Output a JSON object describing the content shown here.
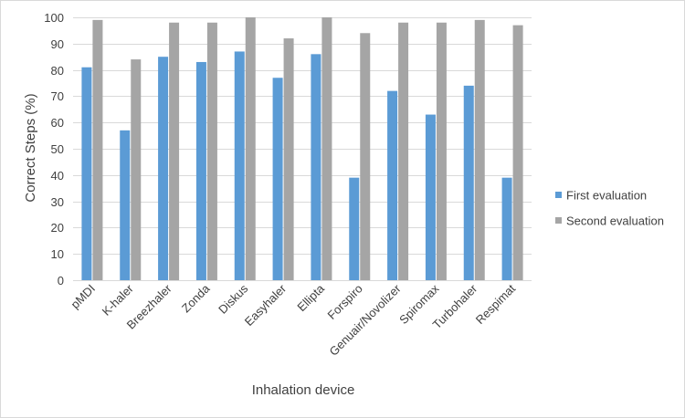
{
  "chart_data": {
    "type": "bar",
    "title": "",
    "xlabel": "Inhalation device",
    "ylabel": "Correct Steps (%)",
    "ylim": [
      0,
      100
    ],
    "ytick_step": 10,
    "grid": true,
    "legend_position": "right",
    "categories": [
      "pMDI",
      "K-haler",
      "Breezhaler",
      "Zonda",
      "Diskus",
      "Easyhaler",
      "Ellipta",
      "Forspiro",
      "Genuair/Novolizer",
      "Spiromax",
      "Turbohaler",
      "Respimat"
    ],
    "series": [
      {
        "name": "First evaluation",
        "color": "#5B9BD5",
        "values": [
          81,
          57,
          85,
          83,
          87,
          77,
          86,
          39,
          72,
          63,
          74,
          39
        ]
      },
      {
        "name": "Second evaluation",
        "color": "#A5A5A5",
        "values": [
          99,
          84,
          98,
          98,
          100,
          92,
          100,
          94,
          98,
          98,
          99,
          97
        ]
      }
    ]
  }
}
